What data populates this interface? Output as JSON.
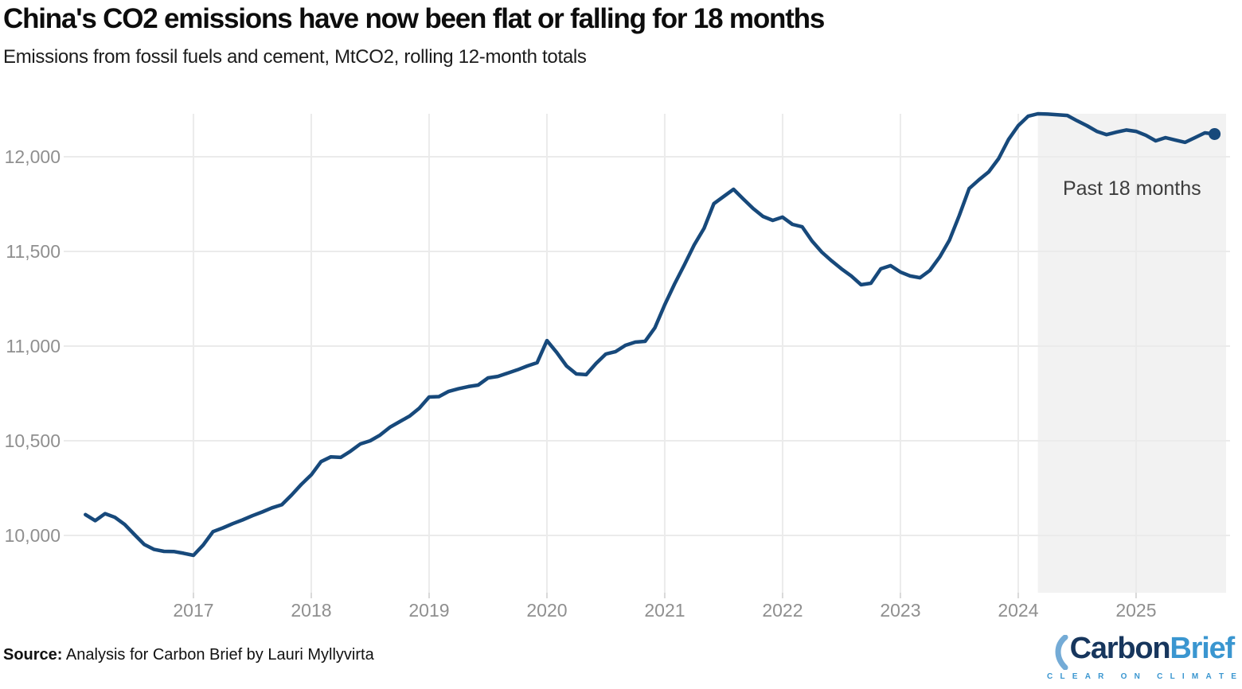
{
  "header": {
    "title": "China's CO2 emissions have now been flat or falling for 18 months",
    "subtitle": "Emissions from fossil fuels and cement, MtCO2, rolling 12-month totals"
  },
  "footer": {
    "source_label": "Source:",
    "source_text": " Analysis for Carbon Brief by Lauri Myllyvirta"
  },
  "logo": {
    "part1": "Carbon",
    "part2": "Brief",
    "tagline": "CLEAR ON CLIMATE",
    "color_dark": "#17365D",
    "color_light": "#3A96D0",
    "swoosh_color": "#74ABD6"
  },
  "chart_data": {
    "type": "line",
    "title": "China's CO2 emissions have now been flat or falling for 18 months",
    "subtitle": "Emissions from fossil fuels and cement, MtCO2, rolling 12-month totals",
    "series_name": "China CO2 emissions, MtCO2, rolling 12-month totals",
    "x": [
      "2016-02",
      "2016-03",
      "2016-04",
      "2016-05",
      "2016-06",
      "2016-07",
      "2016-08",
      "2016-09",
      "2016-10",
      "2016-11",
      "2016-12",
      "2017-01",
      "2017-02",
      "2017-03",
      "2017-04",
      "2017-05",
      "2017-06",
      "2017-07",
      "2017-08",
      "2017-09",
      "2017-10",
      "2017-11",
      "2017-12",
      "2018-01",
      "2018-02",
      "2018-03",
      "2018-04",
      "2018-05",
      "2018-06",
      "2018-07",
      "2018-08",
      "2018-09",
      "2018-10",
      "2018-11",
      "2018-12",
      "2019-01",
      "2019-02",
      "2019-03",
      "2019-04",
      "2019-05",
      "2019-06",
      "2019-07",
      "2019-08",
      "2019-09",
      "2019-10",
      "2019-11",
      "2019-12",
      "2020-01",
      "2020-02",
      "2020-03",
      "2020-04",
      "2020-05",
      "2020-06",
      "2020-07",
      "2020-08",
      "2020-09",
      "2020-10",
      "2020-11",
      "2020-12",
      "2021-01",
      "2021-02",
      "2021-03",
      "2021-04",
      "2021-05",
      "2021-06",
      "2021-07",
      "2021-08",
      "2021-09",
      "2021-10",
      "2021-11",
      "2021-12",
      "2022-01",
      "2022-02",
      "2022-03",
      "2022-04",
      "2022-05",
      "2022-06",
      "2022-07",
      "2022-08",
      "2022-09",
      "2022-10",
      "2022-11",
      "2022-12",
      "2023-01",
      "2023-02",
      "2023-03",
      "2023-04",
      "2023-05",
      "2023-06",
      "2023-07",
      "2023-08",
      "2023-09",
      "2023-10",
      "2023-11",
      "2023-12",
      "2024-01",
      "2024-02",
      "2024-03",
      "2024-04",
      "2024-05",
      "2024-06",
      "2024-07",
      "2024-08",
      "2024-09",
      "2024-10",
      "2024-11",
      "2024-12",
      "2025-01",
      "2025-02",
      "2025-03",
      "2025-04",
      "2025-05",
      "2025-06",
      "2025-07",
      "2025-08",
      "2025-09"
    ],
    "values": [
      10110,
      10078,
      10115,
      10096,
      10058,
      10004,
      9952,
      9926,
      9916,
      9915,
      9906,
      9895,
      9950,
      10020,
      10040,
      10062,
      10082,
      10104,
      10124,
      10146,
      10162,
      10214,
      10270,
      10320,
      10390,
      10415,
      10412,
      10445,
      10483,
      10500,
      10530,
      10571,
      10601,
      10630,
      10672,
      10731,
      10733,
      10761,
      10775,
      10786,
      10794,
      10832,
      10840,
      10857,
      10875,
      10895,
      10912,
      11029,
      10966,
      10895,
      10853,
      10849,
      10908,
      10958,
      10971,
      11004,
      11021,
      11025,
      11097,
      11218,
      11328,
      11429,
      11534,
      11622,
      11752,
      11790,
      11828,
      11777,
      11727,
      11685,
      11664,
      11681,
      11643,
      11630,
      11555,
      11496,
      11450,
      11408,
      11370,
      11324,
      11332,
      11408,
      11425,
      11391,
      11370,
      11361,
      11399,
      11470,
      11560,
      11690,
      11832,
      11878,
      11920,
      11990,
      12090,
      12164,
      12214,
      12227,
      12225,
      12222,
      12218,
      12190,
      12164,
      12134,
      12117,
      12130,
      12141,
      12134,
      12113,
      12084,
      12101,
      12088,
      12076,
      12101,
      12126,
      12120
    ],
    "ylim": [
      9700,
      12240
    ],
    "yticks": {
      "values": [
        10000,
        10500,
        11000,
        11500,
        12000
      ],
      "labels": [
        "10,000",
        "10,500",
        "11,000",
        "11,500",
        "12,000"
      ]
    },
    "xticks": [
      "2017",
      "2018",
      "2019",
      "2020",
      "2021",
      "2022",
      "2023",
      "2024",
      "2025"
    ],
    "annotation": {
      "text": "Past 18 months",
      "region_start": "2024-03",
      "region_end": "2025-09"
    },
    "grid": true,
    "legend": false,
    "end_marker": true,
    "colors": {
      "line": "#17497B",
      "grid": "#EBEBEB",
      "tick": "#D9D9D9",
      "tick_text": "#8F8F8F",
      "shading": "#F2F2F2",
      "annotation_text": "#3D3D3D"
    }
  }
}
